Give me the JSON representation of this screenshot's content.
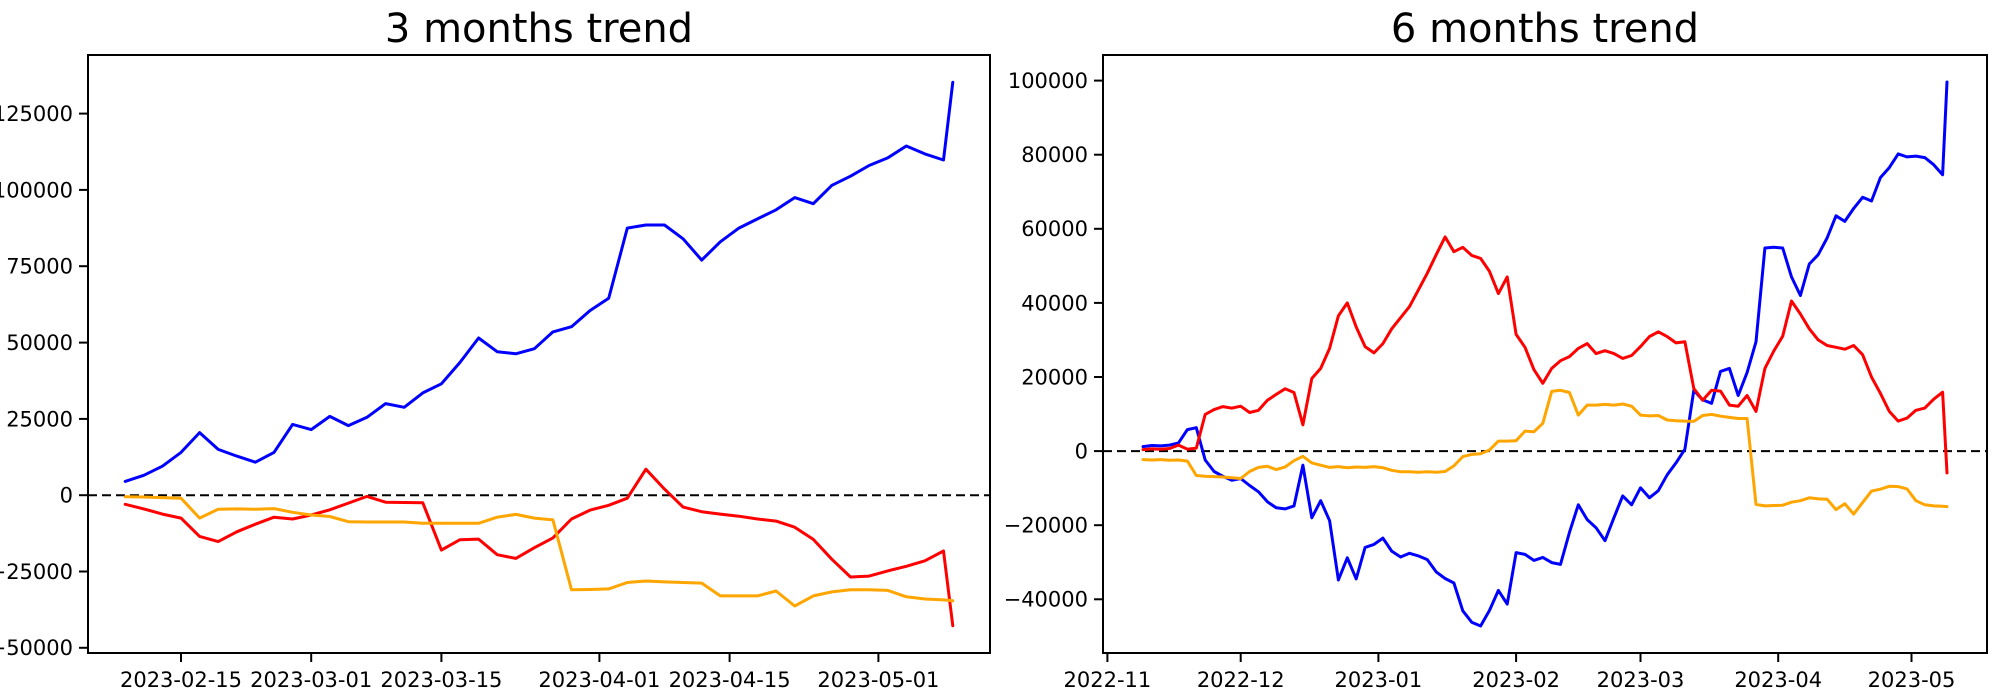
{
  "page": {
    "background": "#ffffff",
    "series_colors": {
      "blue": "#0000ff",
      "red": "#ff0000",
      "orange": "#ffa500"
    }
  },
  "chart_data": [
    {
      "type": "line",
      "title": "3 months trend",
      "xlabel": "",
      "ylabel": "",
      "grid": false,
      "legend": "none",
      "zero_line": {
        "show": true,
        "style": "dashed",
        "color": "#000000"
      },
      "xlim": [
        "2023-02-05",
        "2023-05-13"
      ],
      "ylim": [
        -51700,
        144200
      ],
      "yticks": [
        {
          "value": 125000,
          "label": "125000"
        },
        {
          "value": 100000,
          "label": "100000"
        },
        {
          "value": 75000,
          "label": "75000"
        },
        {
          "value": 50000,
          "label": "50000"
        },
        {
          "value": 25000,
          "label": "25000"
        },
        {
          "value": 0,
          "label": "0"
        },
        {
          "value": -25000,
          "label": "−25000"
        },
        {
          "value": -50000,
          "label": "−50000"
        }
      ],
      "xticks": [
        {
          "value": "2023-02-15",
          "label": "2023-02-15"
        },
        {
          "value": "2023-03-01",
          "label": "2023-03-01"
        },
        {
          "value": "2023-03-15",
          "label": "2023-03-15"
        },
        {
          "value": "2023-04-01",
          "label": "2023-04-01"
        },
        {
          "value": "2023-04-15",
          "label": "2023-04-15"
        },
        {
          "value": "2023-05-01",
          "label": "2023-05-01"
        }
      ],
      "x": [
        "2023-02-09",
        "2023-02-11",
        "2023-02-13",
        "2023-02-15",
        "2023-02-17",
        "2023-02-19",
        "2023-02-21",
        "2023-02-23",
        "2023-02-25",
        "2023-02-27",
        "2023-03-01",
        "2023-03-03",
        "2023-03-05",
        "2023-03-07",
        "2023-03-09",
        "2023-03-11",
        "2023-03-13",
        "2023-03-15",
        "2023-03-17",
        "2023-03-19",
        "2023-03-21",
        "2023-03-23",
        "2023-03-25",
        "2023-03-27",
        "2023-03-29",
        "2023-03-31",
        "2023-04-02",
        "2023-04-04",
        "2023-04-06",
        "2023-04-08",
        "2023-04-10",
        "2023-04-12",
        "2023-04-14",
        "2023-04-16",
        "2023-04-18",
        "2023-04-20",
        "2023-04-22",
        "2023-04-24",
        "2023-04-26",
        "2023-04-28",
        "2023-04-30",
        "2023-05-02",
        "2023-05-04",
        "2023-05-06",
        "2023-05-08",
        "2023-05-09"
      ],
      "series": [
        {
          "name": "blue-series",
          "color": "#0000ff",
          "values": [
            4500,
            6500,
            9500,
            14000,
            20500,
            15000,
            12800,
            10800,
            14000,
            23200,
            21500,
            25800,
            22800,
            25500,
            30000,
            28800,
            33500,
            36500,
            43500,
            51500,
            47000,
            46300,
            48000,
            53500,
            55200,
            60500,
            64500,
            87500,
            88500,
            88500,
            84000,
            77000,
            83000,
            87500,
            90500,
            93500,
            97500,
            95500,
            101500,
            104500,
            108000,
            110500,
            114400,
            111800,
            109800,
            135300
          ]
        },
        {
          "name": "red-series",
          "color": "#ff0000",
          "values": [
            -3000,
            -4500,
            -6200,
            -7500,
            -13500,
            -15200,
            -12000,
            -9500,
            -7200,
            -7800,
            -6500,
            -4800,
            -2600,
            -400,
            -2300,
            -2400,
            -2500,
            -18000,
            -14600,
            -14400,
            -19500,
            -20700,
            -17200,
            -14000,
            -7800,
            -4900,
            -3300,
            -1000,
            8500,
            2000,
            -3900,
            -5400,
            -6200,
            -6900,
            -7800,
            -8500,
            -10500,
            -14500,
            -21000,
            -26800,
            -26500,
            -24800,
            -23300,
            -21500,
            -18300,
            -42800
          ]
        },
        {
          "name": "orange-series",
          "color": "#ffa500",
          "values": [
            -500,
            -600,
            -800,
            -1000,
            -7500,
            -4600,
            -4500,
            -4600,
            -4400,
            -5600,
            -6500,
            -7000,
            -8700,
            -8800,
            -8800,
            -8800,
            -9200,
            -9200,
            -9200,
            -9200,
            -7200,
            -6300,
            -7500,
            -8100,
            -31000,
            -30900,
            -30700,
            -28600,
            -28100,
            -28400,
            -28600,
            -28800,
            -33000,
            -33000,
            -33000,
            -31400,
            -36300,
            -33000,
            -31700,
            -31000,
            -31000,
            -31200,
            -33300,
            -34000,
            -34300,
            -34600
          ]
        }
      ]
    },
    {
      "type": "line",
      "title": "6 months trend",
      "xlabel": "",
      "ylabel": "",
      "grid": false,
      "legend": "none",
      "zero_line": {
        "show": true,
        "style": "dashed",
        "color": "#000000"
      },
      "xlim": [
        "2022-10-31",
        "2023-05-18"
      ],
      "ylim": [
        -54500,
        106900
      ],
      "yticks": [
        {
          "value": 100000,
          "label": "100000"
        },
        {
          "value": 80000,
          "label": "80000"
        },
        {
          "value": 60000,
          "label": "60000"
        },
        {
          "value": 40000,
          "label": "40000"
        },
        {
          "value": 20000,
          "label": "20000"
        },
        {
          "value": 0,
          "label": "0"
        },
        {
          "value": -20000,
          "label": "−20000"
        },
        {
          "value": -40000,
          "label": "−40000"
        }
      ],
      "xticks": [
        {
          "value": "2022-11-01",
          "label": "2022-11"
        },
        {
          "value": "2022-12-01",
          "label": "2022-12"
        },
        {
          "value": "2023-01-01",
          "label": "2023-01"
        },
        {
          "value": "2023-02-01",
          "label": "2023-02"
        },
        {
          "value": "2023-03-01",
          "label": "2023-03"
        },
        {
          "value": "2023-04-01",
          "label": "2023-04"
        },
        {
          "value": "2023-05-01",
          "label": "2023-05"
        }
      ],
      "x": [
        "2022-11-09",
        "2022-11-11",
        "2022-11-13",
        "2022-11-15",
        "2022-11-17",
        "2022-11-19",
        "2022-11-21",
        "2022-11-23",
        "2022-11-25",
        "2022-11-27",
        "2022-11-29",
        "2022-12-01",
        "2022-12-03",
        "2022-12-05",
        "2022-12-07",
        "2022-12-09",
        "2022-12-11",
        "2022-12-13",
        "2022-12-15",
        "2022-12-17",
        "2022-12-19",
        "2022-12-21",
        "2022-12-23",
        "2022-12-25",
        "2022-12-27",
        "2022-12-29",
        "2022-12-31",
        "2023-01-02",
        "2023-01-04",
        "2023-01-06",
        "2023-01-08",
        "2023-01-10",
        "2023-01-12",
        "2023-01-14",
        "2023-01-16",
        "2023-01-18",
        "2023-01-20",
        "2023-01-22",
        "2023-01-24",
        "2023-01-26",
        "2023-01-28",
        "2023-01-30",
        "2023-02-01",
        "2023-02-03",
        "2023-02-05",
        "2023-02-07",
        "2023-02-09",
        "2023-02-11",
        "2023-02-13",
        "2023-02-15",
        "2023-02-17",
        "2023-02-19",
        "2023-02-21",
        "2023-02-23",
        "2023-02-25",
        "2023-02-27",
        "2023-03-01",
        "2023-03-03",
        "2023-03-05",
        "2023-03-07",
        "2023-03-09",
        "2023-03-11",
        "2023-03-13",
        "2023-03-15",
        "2023-03-17",
        "2023-03-19",
        "2023-03-21",
        "2023-03-23",
        "2023-03-25",
        "2023-03-27",
        "2023-03-29",
        "2023-03-31",
        "2023-04-02",
        "2023-04-04",
        "2023-04-06",
        "2023-04-08",
        "2023-04-10",
        "2023-04-12",
        "2023-04-14",
        "2023-04-16",
        "2023-04-18",
        "2023-04-20",
        "2023-04-22",
        "2023-04-24",
        "2023-04-26",
        "2023-04-28",
        "2023-04-30",
        "2023-05-02",
        "2023-05-04",
        "2023-05-06",
        "2023-05-08",
        "2023-05-09"
      ],
      "series": [
        {
          "name": "blue-series",
          "color": "#0000ff",
          "values": [
            1200,
            1500,
            1400,
            1600,
            2200,
            5800,
            6300,
            -2400,
            -5500,
            -6800,
            -7900,
            -7400,
            -9300,
            -11000,
            -13700,
            -15300,
            -15600,
            -14800,
            -3800,
            -18000,
            -13400,
            -18800,
            -34800,
            -28800,
            -34500,
            -26000,
            -25200,
            -23500,
            -27000,
            -28600,
            -27600,
            -28300,
            -29300,
            -32600,
            -34400,
            -35600,
            -43100,
            -46200,
            -47200,
            -43000,
            -37600,
            -41300,
            -27400,
            -27900,
            -29500,
            -28700,
            -30100,
            -30600,
            -22000,
            -14500,
            -18500,
            -20700,
            -24200,
            -18000,
            -12100,
            -14500,
            -9900,
            -12600,
            -10700,
            -6400,
            -3200,
            500,
            16400,
            13800,
            12900,
            21500,
            22300,
            15000,
            21200,
            29500,
            54800,
            55000,
            54800,
            47000,
            42000,
            50500,
            53000,
            57500,
            63500,
            62000,
            65500,
            68500,
            67500,
            73800,
            76500,
            80200,
            79400,
            79600,
            79200,
            77300,
            74600,
            99600
          ]
        },
        {
          "name": "red-series",
          "color": "#ff0000",
          "values": [
            400,
            600,
            500,
            700,
            1600,
            500,
            800,
            9900,
            11200,
            12000,
            11600,
            12100,
            10400,
            11000,
            13700,
            15300,
            16800,
            15800,
            7100,
            19600,
            22300,
            27700,
            36500,
            40000,
            33500,
            28200,
            26500,
            29000,
            33000,
            36000,
            39000,
            43500,
            48000,
            53000,
            57800,
            53800,
            55000,
            52800,
            52000,
            48500,
            42500,
            47000,
            31500,
            28000,
            22000,
            18300,
            22300,
            24400,
            25500,
            27700,
            29000,
            26300,
            27100,
            26300,
            25000,
            25800,
            28200,
            30900,
            32200,
            30900,
            29200,
            29500,
            16900,
            13700,
            16400,
            16200,
            12400,
            12100,
            15000,
            10700,
            22300,
            27000,
            31000,
            40500,
            37000,
            33000,
            30000,
            28500,
            28000,
            27500,
            28500,
            26000,
            20000,
            15600,
            10700,
            8100,
            8900,
            11000,
            11600,
            14000,
            15900,
            -5900
          ]
        },
        {
          "name": "orange-series",
          "color": "#ffa500",
          "values": [
            -2300,
            -2400,
            -2300,
            -2500,
            -2400,
            -2700,
            -6600,
            -6800,
            -6900,
            -7000,
            -7200,
            -7400,
            -5500,
            -4400,
            -4100,
            -5000,
            -4300,
            -2600,
            -1400,
            -3200,
            -3800,
            -4400,
            -4200,
            -4500,
            -4300,
            -4400,
            -4200,
            -4500,
            -5200,
            -5600,
            -5600,
            -5700,
            -5600,
            -5700,
            -5500,
            -4000,
            -1500,
            -900,
            -700,
            300,
            2700,
            2700,
            2800,
            5400,
            5200,
            7500,
            16100,
            16400,
            15800,
            9700,
            12400,
            12400,
            12600,
            12400,
            12700,
            12100,
            9700,
            9500,
            9600,
            8400,
            8200,
            8100,
            8000,
            9600,
            9900,
            9400,
            9100,
            8800,
            8800,
            -14400,
            -14800,
            -14700,
            -14600,
            -13800,
            -13400,
            -12600,
            -12900,
            -13000,
            -15800,
            -14200,
            -17000,
            -13900,
            -10800,
            -10300,
            -9500,
            -9600,
            -10200,
            -13400,
            -14500,
            -14800,
            -14900,
            -15000
          ]
        }
      ]
    }
  ]
}
